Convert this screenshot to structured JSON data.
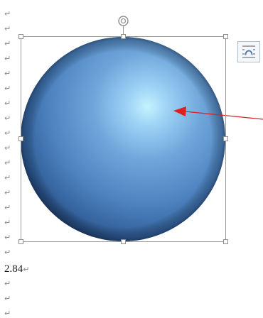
{
  "document": {
    "paragraph_mark": "↵",
    "value_text": "2.84",
    "value_mark": "↵"
  },
  "selected_image": {
    "description_icon": "sphere-image",
    "sphere_color": "#5a8dc6",
    "highlight_color": "#b8ecff",
    "shadow_color": "#0c1a2e"
  },
  "layout_options": {
    "icon": "wrap-text-icon",
    "accent": "#4a74a8"
  },
  "annotation": {
    "arrow_color": "#e02020"
  }
}
